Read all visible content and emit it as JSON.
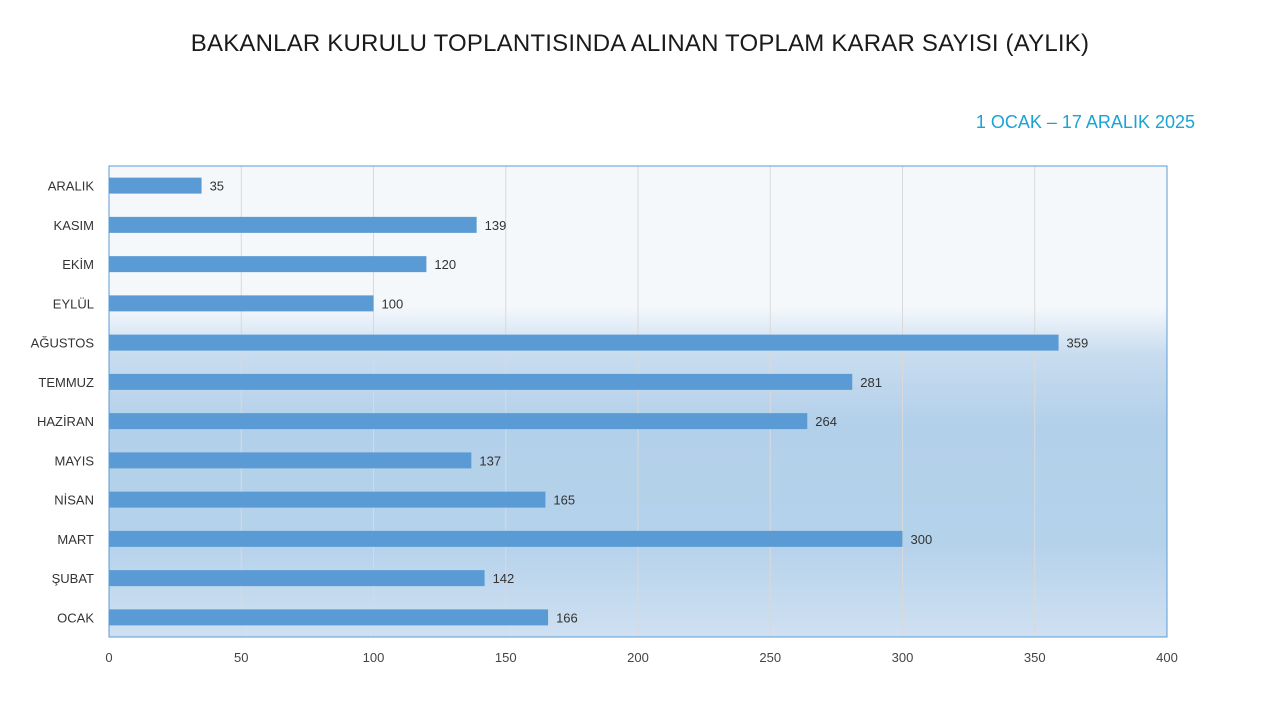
{
  "title": "BAKANLAR KURULU TOPLANTISINDA ALINAN TOPLAM KARAR SAYISI (AYLIK)",
  "subtitle": "1 OCAK –  17 ARALIK 2025",
  "colors": {
    "bar": "#5b9bd5",
    "subtitle": "#1aa3d6",
    "plot_border": "#5b9bd5",
    "grid": "#d9d9d9"
  },
  "chart_data": {
    "type": "bar",
    "orientation": "horizontal",
    "categories": [
      "OCAK",
      "ŞUBAT",
      "MART",
      "NİSAN",
      "MAYIS",
      "HAZİRAN",
      "TEMMUZ",
      "AĞUSTOS",
      "EYLÜL",
      "EKİM",
      "KASIM",
      "ARALIK"
    ],
    "values": [
      166,
      142,
      300,
      165,
      137,
      264,
      281,
      359,
      100,
      120,
      139,
      35
    ],
    "xlim": [
      0,
      400
    ],
    "xticks": [
      "0",
      "50",
      "100",
      "150",
      "200",
      "250",
      "300",
      "350",
      "400"
    ],
    "grid": "vertical",
    "data_labels": true
  }
}
